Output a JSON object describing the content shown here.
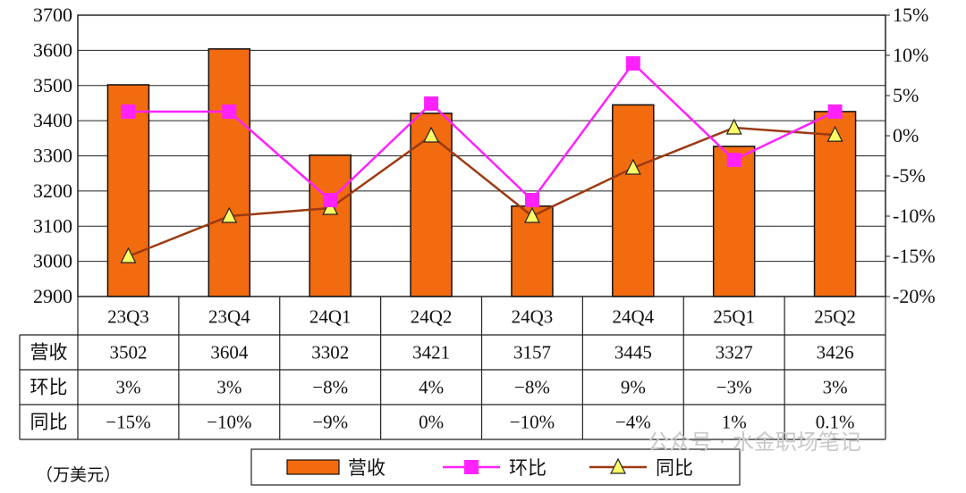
{
  "chart_data": {
    "type": "bar",
    "categories": [
      "23Q3",
      "23Q4",
      "24Q1",
      "24Q2",
      "24Q3",
      "24Q4",
      "25Q1",
      "25Q2"
    ],
    "series": [
      {
        "name": "营收",
        "type": "bar",
        "axis": "left",
        "values": [
          3502,
          3604,
          3302,
          3421,
          3157,
          3445,
          3327,
          3426
        ]
      },
      {
        "name": "环比",
        "type": "line",
        "axis": "right",
        "values": [
          3,
          3,
          -8,
          4,
          -8,
          9,
          -3,
          3
        ]
      },
      {
        "name": "同比",
        "type": "line",
        "axis": "right",
        "values": [
          -15,
          -10,
          -9,
          0,
          -10,
          -4,
          1,
          0.1
        ]
      }
    ],
    "y_left": {
      "min": 2900,
      "max": 3700,
      "ticks": [
        "2900",
        "3000",
        "3100",
        "3200",
        "3300",
        "3400",
        "3500",
        "3600",
        "3700"
      ]
    },
    "y_right": {
      "min": -20,
      "max": 15,
      "ticks": [
        "-20%",
        "-15%",
        "-10%",
        "-5%",
        "0%",
        "5%",
        "10%",
        "15%"
      ]
    },
    "grid": true,
    "legend_position": "bottom"
  },
  "table": {
    "rows": [
      {
        "label": "营收",
        "cells": [
          "3502",
          "3604",
          "3302",
          "3421",
          "3157",
          "3445",
          "3327",
          "3426"
        ]
      },
      {
        "label": "环比",
        "cells": [
          "3%",
          "3%",
          "−8%",
          "4%",
          "−8%",
          "9%",
          "−3%",
          "3%"
        ]
      },
      {
        "label": "同比",
        "cells": [
          "−15%",
          "−10%",
          "−9%",
          "0%",
          "−10%",
          "−4%",
          "1%",
          "0.1%"
        ]
      }
    ]
  },
  "unit_label": "（万美元）",
  "legend": {
    "items": [
      "营收",
      "环比",
      "同比"
    ]
  },
  "watermark": "公众号 · 水金职场笔记",
  "colors": {
    "bar": "#f26b0f",
    "qoq": "#ff22ff",
    "yoy": "#9c3a12",
    "marker_yoy": "#ffff66"
  }
}
